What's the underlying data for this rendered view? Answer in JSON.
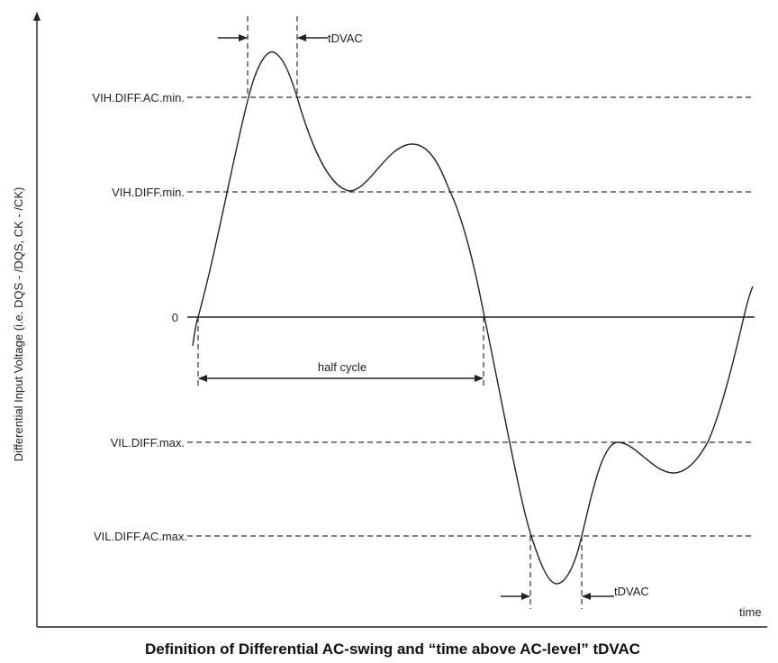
{
  "axis": {
    "ylabel": "Differential Input Voltage (i.e. DQS - /DQS, CK - /CK)",
    "xlabel": "time"
  },
  "levels": {
    "vih_ac": "VIH.DIFF.AC.min.",
    "vih": "VIH.DIFF.min.",
    "zero": "0",
    "vil": "VIL.DIFF.max.",
    "vil_ac": "VIL.DIFF.AC.max."
  },
  "annotations": {
    "tdvac_top": "tDVAC",
    "tdvac_bottom": "tDVAC",
    "half_cycle": "half cycle"
  },
  "caption": "Definition of Differential AC-swing and “time above AC-level” tDVAC"
}
